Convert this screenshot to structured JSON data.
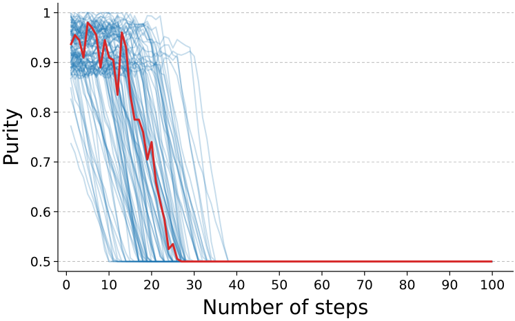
{
  "chart_data": {
    "type": "line",
    "title": "",
    "xlabel": "Number of steps",
    "ylabel": "Purity",
    "xlim": [
      -2,
      105
    ],
    "ylim": [
      0.48,
      1.02
    ],
    "xticks": [
      0,
      10,
      20,
      30,
      40,
      50,
      60,
      70,
      80,
      90,
      100
    ],
    "yticks": [
      0.5,
      0.6,
      0.7,
      0.8,
      0.9,
      1.0
    ],
    "ytick_labels": [
      "0.5",
      "0.6",
      "0.7",
      "0.8",
      "0.9",
      "1"
    ],
    "grid": {
      "y": true,
      "x": false,
      "style": "dashed"
    },
    "legend": "none",
    "colors": {
      "background_series": "#1f77b4",
      "background_alpha": 0.25,
      "highlight_series": "#d62728"
    },
    "background_series_count": 100,
    "background_series_summary": {
      "start_purity_range": [
        0.88,
        1.0
      ],
      "collapse_step_range": [
        4,
        43
      ],
      "final_purity": 0.5
    },
    "highlight_series": {
      "x": [
        1,
        2,
        3,
        4,
        5,
        6,
        7,
        8,
        9,
        10,
        11,
        12,
        13,
        14,
        15,
        16,
        17,
        18,
        19,
        20,
        21,
        22,
        23,
        24,
        25,
        26,
        27,
        28,
        29,
        30,
        40,
        50,
        60,
        70,
        80,
        90,
        100
      ],
      "y": [
        0.935,
        0.955,
        0.945,
        0.91,
        0.98,
        0.97,
        0.955,
        0.89,
        0.945,
        0.91,
        0.905,
        0.835,
        0.96,
        0.93,
        0.835,
        0.785,
        0.785,
        0.76,
        0.705,
        0.74,
        0.66,
        0.62,
        0.585,
        0.525,
        0.535,
        0.505,
        0.5,
        0.5,
        0.5,
        0.5,
        0.5,
        0.5,
        0.5,
        0.5,
        0.5,
        0.5,
        0.5
      ]
    }
  }
}
